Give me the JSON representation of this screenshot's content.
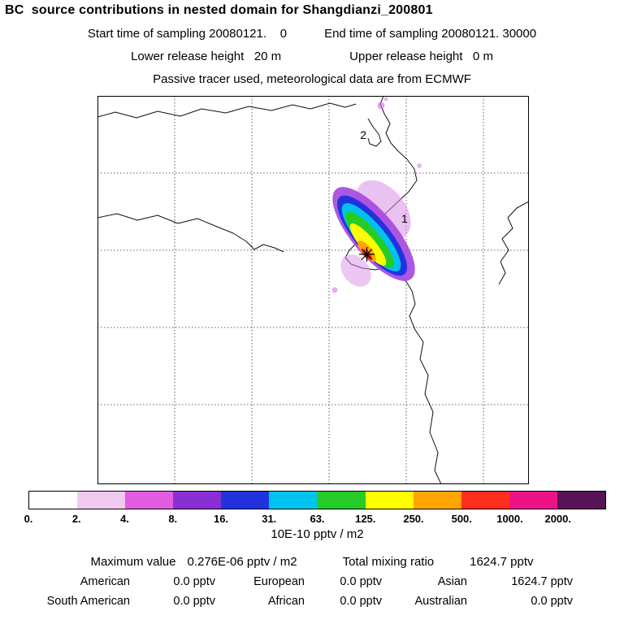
{
  "header": {
    "title": "BC  source contributions in nested domain for Shangdianzi_200801",
    "start_time": "Start time of sampling 20080121.    0",
    "end_time": "End time of sampling 20080121. 30000",
    "lower_release": "Lower release height   20 m",
    "upper_release": "Upper release height   0 m",
    "tracer_note": "Passive tracer used, meteorological data are from ECMWF"
  },
  "map": {
    "point_labels": [
      "1",
      "2"
    ]
  },
  "colorbar": {
    "ticks": [
      "0.",
      "2.",
      "4.",
      "8.",
      "16.",
      "31.",
      "63.",
      "125.",
      "250.",
      "500.",
      "1000.",
      "2000."
    ],
    "colors": [
      "#ffffff",
      "#f1c9f1",
      "#e25ce2",
      "#8a2fd4",
      "#2233dd",
      "#00c4f0",
      "#28cc28",
      "#ffff00",
      "#ffa500",
      "#ff2e1e",
      "#ee1289",
      "#571357"
    ],
    "units": "10E-10 pptv / m2"
  },
  "stats": {
    "max_label": "Maximum value",
    "max_value": "0.276E-06 pptv / m2",
    "total_label": "Total mixing ratio",
    "total_value": "1624.7 pptv",
    "regions": [
      {
        "label": "American",
        "value": "0.0 pptv"
      },
      {
        "label": "European",
        "value": "0.0 pptv"
      },
      {
        "label": "Asian",
        "value": "1624.7 pptv"
      },
      {
        "label": "South American",
        "value": "0.0 pptv"
      },
      {
        "label": "African",
        "value": "0.0 pptv"
      },
      {
        "label": "Australian",
        "value": "0.0 pptv"
      }
    ]
  },
  "chart_data": {
    "type": "heatmap",
    "title": "BC source contributions in nested domain for Shangdianzi_200801",
    "subtitle_lines": [
      "Start time of sampling 20080121. 0  End time of sampling 20080121. 30000",
      "Lower release height 20 m  Upper release height 0 m",
      "Passive tracer used, meteorological data are from ECMWF"
    ],
    "colorbar_levels": [
      0,
      2,
      4,
      8,
      16,
      31,
      63,
      125,
      250,
      500,
      1000,
      2000
    ],
    "colorbar_units": "10E-10 pptv / m2",
    "maximum_value": "0.276E-06 pptv / m2",
    "total_mixing_ratio_pptv": 1624.7,
    "contributions_pptv": {
      "American": 0.0,
      "European": 0.0,
      "Asian": 1624.7,
      "South American": 0.0,
      "African": 0.0,
      "Australian": 0.0
    },
    "map_markers": [
      {
        "label": "1",
        "type": "text"
      },
      {
        "label": "2",
        "type": "text"
      },
      {
        "label": "star",
        "type": "receptor-location"
      }
    ],
    "grid": "dashed",
    "legend_position": "bottom"
  }
}
